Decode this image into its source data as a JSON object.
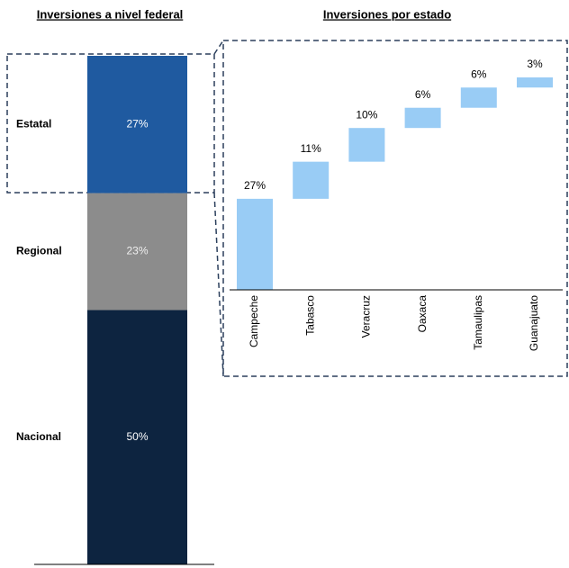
{
  "chart_data": [
    {
      "type": "stacked_bar",
      "title": "Inversiones a nivel federal",
      "series": [
        {
          "name": "Estatal",
          "color": "#1f5aa0",
          "values": [
            27
          ],
          "value_labels": [
            "27%"
          ]
        },
        {
          "name": "Regional",
          "color": "#8c8c8c",
          "values": [
            23
          ],
          "value_labels": [
            "23%"
          ]
        },
        {
          "name": "Nacional",
          "color": "#0d2440",
          "values": [
            50
          ],
          "value_labels": [
            "50%"
          ]
        }
      ]
    },
    {
      "type": "waterfall",
      "title": "Inversiones por estado",
      "categories": [
        "Campeche",
        "Tabasco",
        "Veracruz",
        "Oaxaca",
        "Tamaulipas",
        "Guanajuato"
      ],
      "values": [
        27,
        11,
        10,
        6,
        6,
        3
      ],
      "value_labels": [
        "27%",
        "11%",
        "10%",
        "6%",
        "6%",
        "3%"
      ],
      "color": "#99ccf5"
    }
  ]
}
